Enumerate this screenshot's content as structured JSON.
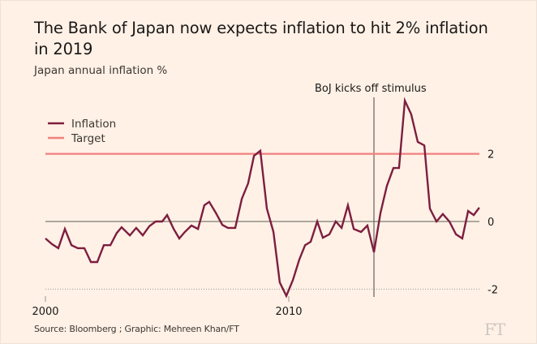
{
  "title": "The Bank of Japan now expects inflation to hit 2% inflation in 2019",
  "subtitle": "Japan annual inflation %",
  "source": "Source: Bloomberg ; Graphic: Mehreen Khan/FT",
  "logo": "FT",
  "colors": {
    "background": "#fff1e5",
    "inflation": "#7d1e3f",
    "target": "#f08080",
    "axis": "#7a7d6f",
    "annotation_line": "#66605b"
  },
  "chart_data": {
    "type": "line",
    "title": "The Bank of Japan now expects inflation to hit 2% inflation in 2019",
    "subtitle": "Japan annual inflation %",
    "xlabel": "",
    "ylabel": "",
    "xlim": [
      2000,
      2018
    ],
    "ylim": [
      -2.2,
      3.7
    ],
    "x_ticks": [
      2000,
      2010
    ],
    "x_tick_labels": [
      "2000",
      "2010"
    ],
    "y_ticks": [
      2,
      0,
      -2
    ],
    "y_tick_labels": [
      "2",
      "0",
      "-2"
    ],
    "grid": "horizontal at -2 (dotted), 0 (solid)",
    "legend": {
      "position": "top-left",
      "entries": [
        "Inflation",
        "Target"
      ]
    },
    "series": [
      {
        "name": "Inflation",
        "x": [
          2000.0,
          2000.27,
          2000.53,
          2000.8,
          2001.07,
          2001.33,
          2001.6,
          2001.87,
          2002.13,
          2002.4,
          2002.67,
          2002.93,
          2003.13,
          2003.47,
          2003.73,
          2004.0,
          2004.27,
          2004.53,
          2004.8,
          2005.0,
          2005.27,
          2005.5,
          2005.73,
          2006.0,
          2006.27,
          2006.53,
          2006.73,
          2007.0,
          2007.27,
          2007.5,
          2007.8,
          2008.07,
          2008.33,
          2008.57,
          2008.83,
          2009.1,
          2009.37,
          2009.63,
          2009.9,
          2010.17,
          2010.43,
          2010.67,
          2010.9,
          2011.17,
          2011.4,
          2011.67,
          2011.93,
          2012.17,
          2012.43,
          2012.67,
          2012.97,
          2013.23,
          2013.5,
          2013.77,
          2014.03,
          2014.3,
          2014.53,
          2014.77,
          2015.03,
          2015.3,
          2015.57,
          2015.8,
          2016.07,
          2016.33,
          2016.6,
          2016.87,
          2017.13,
          2017.37,
          2017.6,
          2017.83
        ],
        "values": [
          -0.5,
          -0.67,
          -0.79,
          -0.22,
          -0.7,
          -0.79,
          -0.79,
          -1.2,
          -1.2,
          -0.7,
          -0.7,
          -0.34,
          -0.17,
          -0.41,
          -0.19,
          -0.41,
          -0.14,
          0.0,
          0.0,
          0.19,
          -0.22,
          -0.5,
          -0.31,
          -0.12,
          -0.22,
          0.48,
          0.58,
          0.26,
          -0.1,
          -0.19,
          -0.19,
          0.67,
          1.13,
          1.94,
          2.09,
          0.38,
          -0.31,
          -1.8,
          -2.2,
          -1.73,
          -1.13,
          -0.7,
          -0.6,
          0.0,
          -0.48,
          -0.38,
          0.0,
          -0.19,
          0.48,
          -0.22,
          -0.31,
          -0.12,
          -0.91,
          0.26,
          1.05,
          1.58,
          1.58,
          3.57,
          3.17,
          2.35,
          2.25,
          0.38,
          0.0,
          0.22,
          0.0,
          -0.38,
          -0.5,
          0.31,
          0.19,
          0.41
        ]
      },
      {
        "name": "Target",
        "x": [
          2000,
          2018
        ],
        "values": [
          2,
          2
        ]
      }
    ],
    "annotations": [
      {
        "text": "BoJ kicks off stimulus",
        "x": 2013.5,
        "type": "vertical-line"
      }
    ]
  }
}
